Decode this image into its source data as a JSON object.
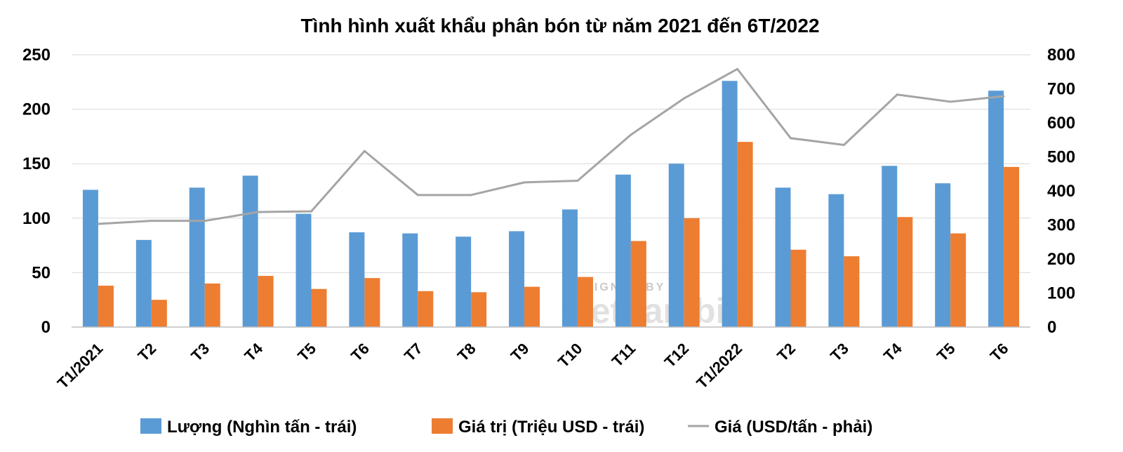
{
  "chart_data": {
    "type": "bar",
    "title": "Tình hình xuất khẩu phân bón từ năm 2021 đến 6T/2022",
    "categories": [
      "T1/2021",
      "T2",
      "T3",
      "T4",
      "T5",
      "T6",
      "T7",
      "T8",
      "T9",
      "T10",
      "T11",
      "T12",
      "T1/2022",
      "T2",
      "T3",
      "T4",
      "T5",
      "T6"
    ],
    "y_left": {
      "ylim": [
        0,
        250
      ],
      "ticks": [
        "0",
        "50",
        "100",
        "150",
        "200",
        "250"
      ]
    },
    "y_right": {
      "ylim": [
        0,
        800
      ],
      "ticks": [
        "0",
        "100",
        "200",
        "300",
        "400",
        "500",
        "600",
        "700",
        "800"
      ]
    },
    "grid": true,
    "legend_position": "bottom",
    "series": [
      {
        "name": "Lượng (Nghìn tấn - trái)",
        "type": "bar",
        "axis": "left",
        "color": "#5b9bd5",
        "values": [
          126,
          80,
          128,
          139,
          104,
          87,
          86,
          83,
          88,
          108,
          140,
          150,
          226,
          128,
          122,
          148,
          132,
          217
        ]
      },
      {
        "name": "Giá trị (Triệu USD - trái)",
        "type": "bar",
        "axis": "left",
        "color": "#ed7d31",
        "values": [
          38,
          25,
          40,
          47,
          35,
          45,
          33,
          32,
          37,
          46,
          79,
          100,
          170,
          71,
          65,
          101,
          86,
          147
        ]
      },
      {
        "name": "Giá (USD/tấn - phải)",
        "type": "line",
        "axis": "right",
        "color": "#a5a5a5",
        "values": [
          303,
          312,
          312,
          338,
          340,
          517,
          388,
          388,
          425,
          430,
          565,
          672,
          758,
          555,
          535,
          683,
          662,
          678
        ]
      }
    ]
  },
  "watermark": {
    "top": "DESIGNED BY",
    "brand": "vietnambiz"
  }
}
